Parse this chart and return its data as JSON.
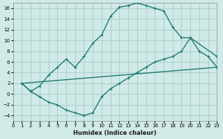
{
  "xlabel": "Humidex (Indice chaleur)",
  "bg_color": "#d0eae8",
  "grid_color": "#b0d0ce",
  "line_color": "#1a7a6e",
  "xlim": [
    0,
    23
  ],
  "ylim": [
    -5,
    17
  ],
  "xticks": [
    0,
    1,
    2,
    3,
    4,
    5,
    6,
    7,
    8,
    9,
    10,
    11,
    12,
    13,
    14,
    15,
    16,
    17,
    18,
    19,
    20,
    21,
    22,
    23
  ],
  "yticks": [
    -4,
    -2,
    0,
    2,
    4,
    6,
    8,
    10,
    12,
    14,
    16
  ],
  "curve1_x": [
    1,
    2,
    3,
    4,
    5,
    6,
    7,
    8,
    9,
    10,
    11,
    12,
    13,
    14,
    15,
    16,
    17,
    18,
    19,
    20,
    23
  ],
  "curve1_y": [
    2,
    0.5,
    1.5,
    3.5,
    5,
    6.5,
    5,
    7,
    9.5,
    11,
    14.5,
    16.2,
    16.5,
    17,
    16.5,
    16,
    15.5,
    12.5,
    10.5,
    10.5,
    7
  ],
  "curve2_x": [
    1,
    2,
    3,
    4,
    5,
    6,
    7,
    8,
    9,
    10,
    11,
    12,
    13,
    14,
    15,
    16,
    17,
    18,
    19,
    20,
    21,
    22,
    23
  ],
  "curve2_y": [
    2,
    0.5,
    -0.5,
    -1.5,
    -2,
    -3,
    -3.5,
    -4,
    -3.5,
    -0.5,
    1,
    2,
    3,
    4,
    5,
    6,
    6.5,
    7,
    8,
    10.5,
    8,
    7,
    5
  ],
  "curve3_x": [
    1,
    23
  ],
  "curve3_y": [
    2,
    5
  ]
}
